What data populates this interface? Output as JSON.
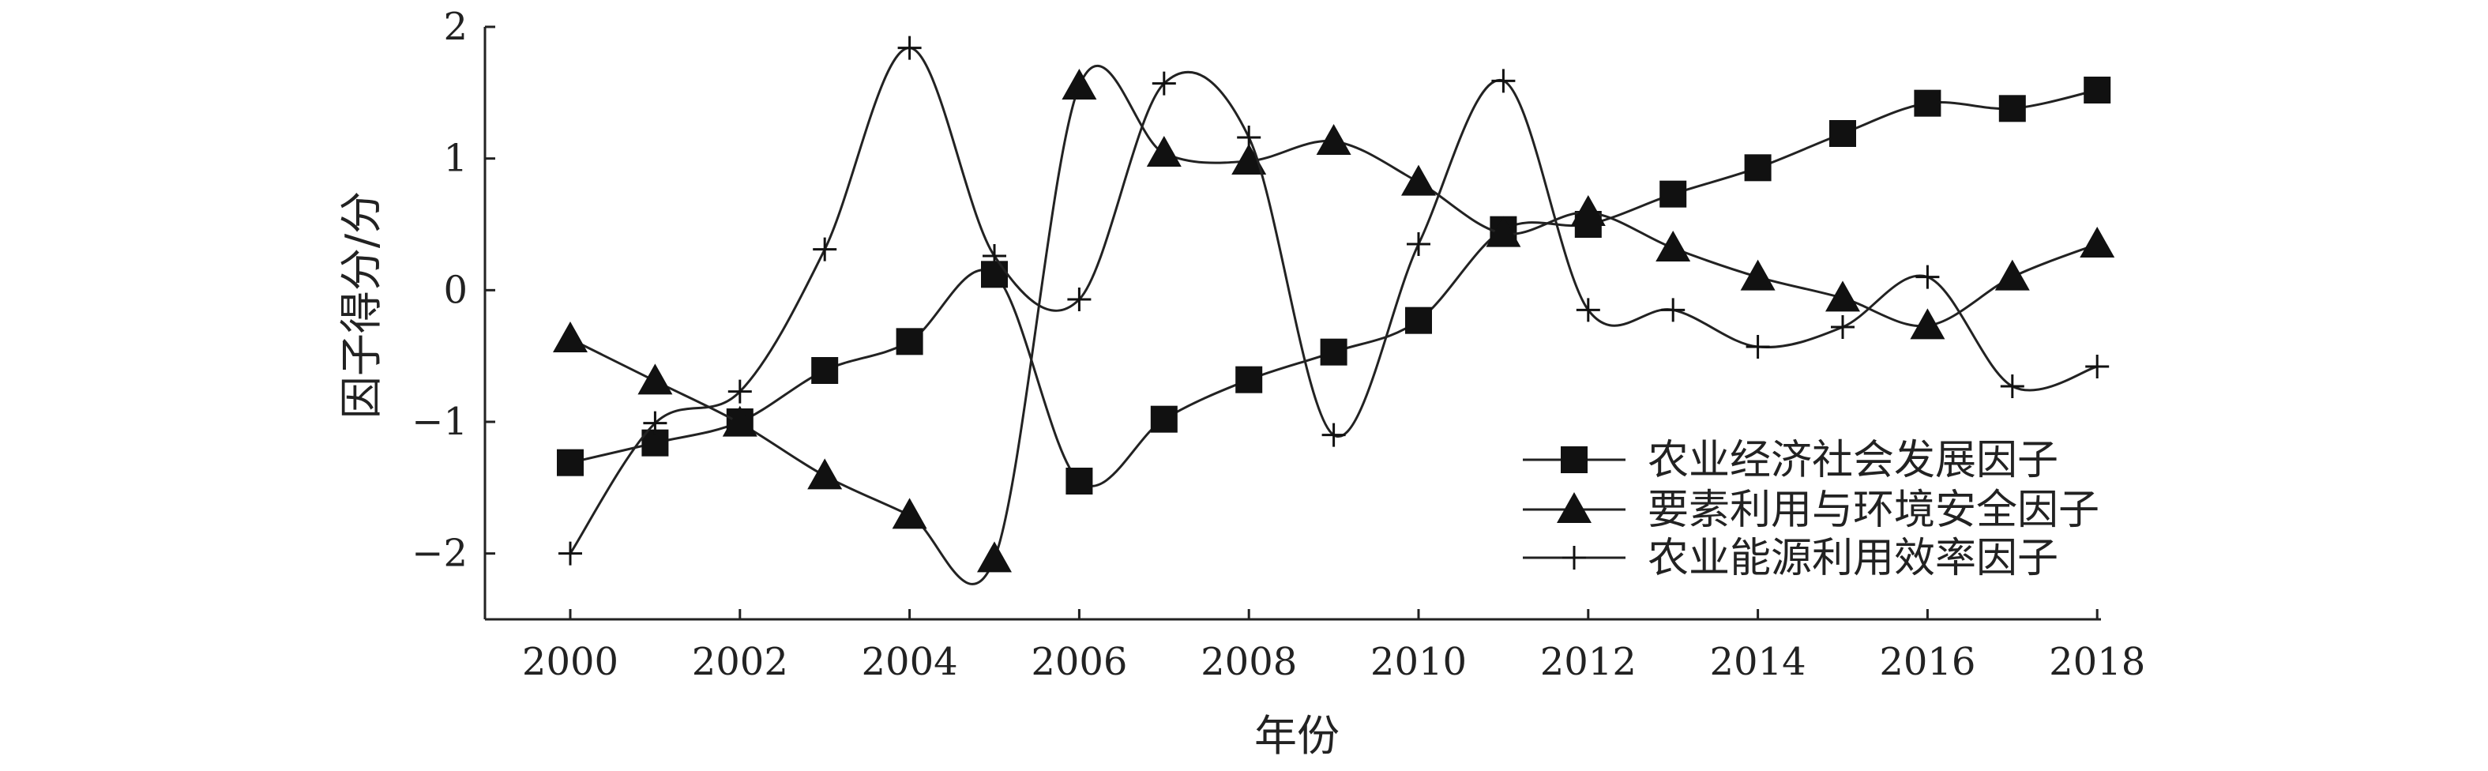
{
  "chart_data": {
    "type": "line",
    "title": "",
    "xlabel": "年份",
    "ylabel": "因子得分/分",
    "x": [
      2000,
      2001,
      2002,
      2003,
      2004,
      2005,
      2006,
      2007,
      2008,
      2009,
      2010,
      2011,
      2012,
      2013,
      2014,
      2015,
      2016,
      2017,
      2018
    ],
    "xticks": [
      2000,
      2002,
      2004,
      2006,
      2008,
      2010,
      2012,
      2014,
      2016,
      2018
    ],
    "xlim": [
      1999,
      2018
    ],
    "ylim": [
      -2.5,
      2
    ],
    "yticks": [
      2,
      1,
      0,
      -1,
      -2
    ],
    "ytick_labels": [
      "2",
      "1",
      "0",
      "−1",
      "−2"
    ],
    "grid": false,
    "legend": {
      "placement": "lower-right",
      "entries": [
        "农业经济社会发展因子",
        "要素利用与环境安全因子",
        "农业能源利用效率因子"
      ]
    },
    "series": [
      {
        "name": "农业经济社会发展因子",
        "marker": "square",
        "values": [
          -1.31,
          -1.16,
          -1.0,
          -0.61,
          -0.39,
          0.12,
          -1.45,
          -0.98,
          -0.68,
          -0.47,
          -0.23,
          0.46,
          0.5,
          0.73,
          0.93,
          1.19,
          1.42,
          1.38,
          1.52
        ]
      },
      {
        "name": "要素利用与环境安全因子",
        "marker": "triangle",
        "values": [
          -0.37,
          -0.69,
          -1.01,
          -1.41,
          -1.71,
          -2.04,
          1.55,
          1.04,
          0.98,
          1.13,
          0.82,
          0.43,
          0.59,
          0.32,
          0.1,
          -0.06,
          -0.27,
          0.1,
          0.35
        ]
      },
      {
        "name": "农业能源利用效率因子",
        "marker": "plus",
        "values": [
          -2.0,
          -1.01,
          -0.77,
          0.31,
          1.84,
          0.26,
          -0.07,
          1.57,
          1.16,
          -1.1,
          0.35,
          1.59,
          -0.15,
          -0.15,
          -0.43,
          -0.28,
          0.1,
          -0.73,
          -0.58
        ]
      }
    ]
  }
}
